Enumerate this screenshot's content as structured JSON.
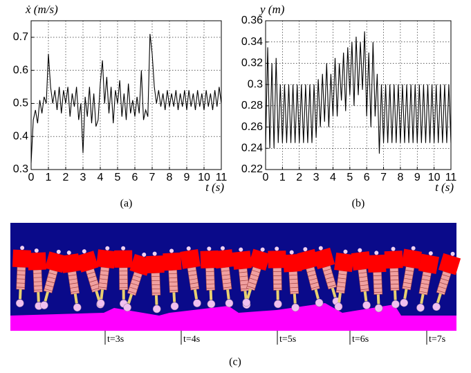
{
  "chart_data": [
    {
      "type": "line",
      "ylabel": "ẋ (m/s)",
      "xlabel": "t (s)",
      "caption": "(a)",
      "x": [
        0,
        0.125,
        0.25,
        0.375,
        0.5,
        0.625,
        0.75,
        0.875,
        1,
        1.125,
        1.25,
        1.375,
        1.5,
        1.625,
        1.75,
        1.875,
        2,
        2.125,
        2.25,
        2.375,
        2.5,
        2.625,
        2.75,
        2.875,
        3,
        3.125,
        3.25,
        3.375,
        3.5,
        3.625,
        3.75,
        3.875,
        4,
        4.125,
        4.25,
        4.375,
        4.5,
        4.625,
        4.75,
        4.875,
        5,
        5.125,
        5.25,
        5.375,
        5.5,
        5.625,
        5.75,
        5.875,
        6,
        6.125,
        6.25,
        6.375,
        6.5,
        6.625,
        6.75,
        6.875,
        7,
        7.125,
        7.25,
        7.375,
        7.5,
        7.625,
        7.75,
        7.875,
        8,
        8.125,
        8.25,
        8.375,
        8.5,
        8.625,
        8.75,
        8.875,
        9,
        9.125,
        9.25,
        9.375,
        9.5,
        9.625,
        9.75,
        9.875,
        10,
        10.125,
        10.25,
        10.375,
        10.5,
        10.625,
        10.75,
        10.875,
        11
      ],
      "values": [
        0.32,
        0.45,
        0.48,
        0.44,
        0.51,
        0.47,
        0.52,
        0.5,
        0.65,
        0.55,
        0.5,
        0.54,
        0.48,
        0.55,
        0.47,
        0.54,
        0.5,
        0.55,
        0.46,
        0.53,
        0.49,
        0.55,
        0.45,
        0.5,
        0.35,
        0.52,
        0.46,
        0.55,
        0.44,
        0.53,
        0.43,
        0.45,
        0.56,
        0.63,
        0.5,
        0.58,
        0.47,
        0.55,
        0.44,
        0.54,
        0.5,
        0.57,
        0.46,
        0.53,
        0.45,
        0.56,
        0.47,
        0.51,
        0.46,
        0.52,
        0.47,
        0.6,
        0.45,
        0.48,
        0.46,
        0.71,
        0.65,
        0.55,
        0.5,
        0.54,
        0.49,
        0.53,
        0.48,
        0.54,
        0.49,
        0.53,
        0.49,
        0.54,
        0.48,
        0.53,
        0.49,
        0.54,
        0.48,
        0.54,
        0.49,
        0.53,
        0.48,
        0.54,
        0.49,
        0.53,
        0.48,
        0.54,
        0.49,
        0.53,
        0.48,
        0.54,
        0.49,
        0.55,
        0.5
      ],
      "color": "#000000",
      "xlim": [
        0,
        11
      ],
      "xticks": [
        0,
        1,
        2,
        3,
        4,
        5,
        6,
        7,
        8,
        9,
        10,
        11
      ],
      "ylim": [
        0.3,
        0.75
      ],
      "yticks": [
        0.3,
        0.4,
        0.5,
        0.6,
        0.7
      ],
      "grid": true
    },
    {
      "type": "line",
      "ylabel": "y (m)",
      "xlabel": "t (s)",
      "caption": "(b)",
      "x": [
        0,
        0.125,
        0.25,
        0.375,
        0.5,
        0.625,
        0.75,
        0.875,
        1,
        1.125,
        1.25,
        1.375,
        1.5,
        1.625,
        1.75,
        1.875,
        2,
        2.125,
        2.25,
        2.375,
        2.5,
        2.625,
        2.75,
        2.875,
        3,
        3.125,
        3.25,
        3.375,
        3.5,
        3.625,
        3.75,
        3.875,
        4,
        4.125,
        4.25,
        4.375,
        4.5,
        4.625,
        4.75,
        4.875,
        5,
        5.125,
        5.25,
        5.375,
        5.5,
        5.625,
        5.75,
        5.875,
        6,
        6.125,
        6.25,
        6.375,
        6.5,
        6.625,
        6.75,
        6.875,
        7,
        7.125,
        7.25,
        7.375,
        7.5,
        7.625,
        7.75,
        7.875,
        8,
        8.125,
        8.25,
        8.375,
        8.5,
        8.625,
        8.75,
        8.875,
        9,
        9.125,
        9.25,
        9.375,
        9.5,
        9.625,
        9.75,
        9.875,
        10,
        10.125,
        10.25,
        10.375,
        10.5,
        10.625,
        10.75,
        10.875,
        11
      ],
      "values": [
        0.24,
        0.335,
        0.24,
        0.32,
        0.24,
        0.325,
        0.245,
        0.3,
        0.245,
        0.3,
        0.245,
        0.3,
        0.245,
        0.3,
        0.245,
        0.3,
        0.245,
        0.3,
        0.245,
        0.3,
        0.245,
        0.3,
        0.245,
        0.3,
        0.25,
        0.305,
        0.26,
        0.31,
        0.265,
        0.32,
        0.26,
        0.31,
        0.27,
        0.325,
        0.27,
        0.32,
        0.285,
        0.33,
        0.275,
        0.335,
        0.29,
        0.34,
        0.28,
        0.345,
        0.29,
        0.34,
        0.295,
        0.35,
        0.27,
        0.33,
        0.26,
        0.34,
        0.27,
        0.31,
        0.235,
        0.3,
        0.245,
        0.3,
        0.245,
        0.3,
        0.245,
        0.3,
        0.245,
        0.3,
        0.245,
        0.3,
        0.245,
        0.3,
        0.245,
        0.3,
        0.245,
        0.3,
        0.245,
        0.3,
        0.245,
        0.3,
        0.245,
        0.3,
        0.245,
        0.3,
        0.245,
        0.3,
        0.245,
        0.3,
        0.245,
        0.3,
        0.245,
        0.3,
        0.245
      ],
      "color": "#000000",
      "xlim": [
        0,
        11
      ],
      "xticks": [
        0,
        1,
        2,
        3,
        4,
        5,
        6,
        7,
        8,
        9,
        10,
        11
      ],
      "ylim": [
        0.22,
        0.36
      ],
      "yticks": [
        0.22,
        0.24,
        0.26,
        0.28,
        0.3,
        0.32,
        0.34,
        0.36
      ],
      "grid": true
    }
  ],
  "panel_c": {
    "time_labels": [
      "t=3s",
      "t=4s",
      "t=5s",
      "t=6s",
      "t=7s"
    ],
    "caption": "(c)"
  }
}
